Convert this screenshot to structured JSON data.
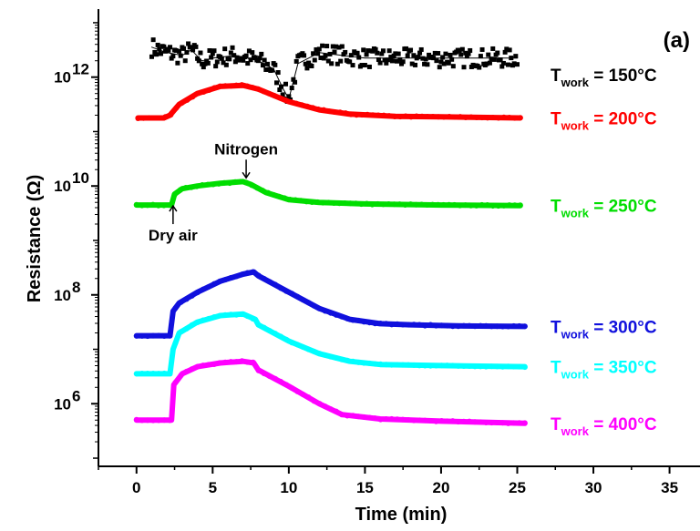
{
  "chart_data": {
    "type": "line",
    "panel_label": "(a)",
    "xlabel": "Time (min)",
    "ylabel": "Resistance (Ω)",
    "xlim": [
      -2.5,
      37
    ],
    "ylim_log10": [
      4.85,
      13.25
    ],
    "y_scale": "log",
    "x_ticks": [
      0,
      5,
      10,
      15,
      20,
      25,
      30,
      35
    ],
    "x_tick_labels": [
      "0",
      "5",
      "10",
      "15",
      "20",
      "25",
      "30",
      "35"
    ],
    "y_ticks": [
      {
        "mantissa": "10",
        "exponent": "6",
        "log10": 6
      },
      {
        "mantissa": "10",
        "exponent": "8",
        "log10": 8
      },
      {
        "mantissa": "10",
        "exponent": "10",
        "log10": 10
      },
      {
        "mantissa": "10",
        "exponent": "12",
        "log10": 12
      }
    ],
    "annotations": [
      {
        "text": "Nitrogen",
        "x": 7.2,
        "log10_y": 10.15,
        "arrow": "down"
      },
      {
        "text": "Dry air",
        "x": 2.4,
        "log10_y": 9.3,
        "arrow": "up"
      }
    ],
    "series": [
      {
        "label_main": "T",
        "label_sub": "work",
        "label_rest": " = 150°C",
        "color": "#000000",
        "marker": "square",
        "x": [
          1.0,
          2.0,
          3.0,
          3.6,
          4.3,
          5.0,
          6.5,
          8.0,
          9.0,
          9.6,
          10.0,
          10.6,
          12.0,
          15.0,
          20.0,
          25.0
        ],
        "log10_y": [
          12.55,
          12.45,
          12.4,
          12.5,
          12.3,
          12.35,
          12.4,
          12.3,
          12.15,
          11.8,
          11.6,
          12.25,
          12.45,
          12.35,
          12.35,
          12.35
        ]
      },
      {
        "label_main": "T",
        "label_sub": "work",
        "label_rest": " = 200°C",
        "color": "#ff0000",
        "marker": "circle",
        "x": [
          0.1,
          1.8,
          2.2,
          2.8,
          4.0,
          5.5,
          7.0,
          8.0,
          10.0,
          12.0,
          14.0,
          17.0,
          20.0,
          25.2
        ],
        "log10_y": [
          11.25,
          11.25,
          11.3,
          11.5,
          11.7,
          11.83,
          11.85,
          11.78,
          11.55,
          11.4,
          11.32,
          11.28,
          11.27,
          11.25
        ]
      },
      {
        "label_main": "T",
        "label_sub": "work",
        "label_rest": " = 250°C",
        "color": "#00dd00",
        "marker": "triangle",
        "x": [
          0.0,
          2.3,
          2.5,
          3.0,
          4.0,
          5.5,
          7.0,
          7.5,
          8.5,
          10.0,
          12.0,
          15.0,
          20.0,
          25.2
        ],
        "log10_y": [
          9.65,
          9.65,
          9.85,
          9.95,
          10.0,
          10.05,
          10.08,
          10.03,
          9.88,
          9.75,
          9.7,
          9.67,
          9.65,
          9.64
        ]
      },
      {
        "label_main": "T",
        "label_sub": "work",
        "label_rest": " = 300°C",
        "color": "#1010dd",
        "marker": "triangle-down",
        "x": [
          0.0,
          2.2,
          2.4,
          2.8,
          4.0,
          5.5,
          7.0,
          7.7,
          8.0,
          10.0,
          12.0,
          14.0,
          16.0,
          18.0,
          21.0,
          25.5
        ],
        "log10_y": [
          7.25,
          7.25,
          7.7,
          7.85,
          8.05,
          8.25,
          8.38,
          8.42,
          8.35,
          8.05,
          7.75,
          7.55,
          7.47,
          7.45,
          7.43,
          7.42
        ]
      },
      {
        "label_main": "T",
        "label_sub": "work",
        "label_rest": " = 350°C",
        "color": "#00ffff",
        "marker": "diamond",
        "x": [
          0.0,
          2.2,
          2.4,
          2.8,
          4.0,
          5.5,
          7.0,
          7.8,
          8.0,
          10.0,
          12.0,
          14.0,
          16.0,
          20.0,
          25.5
        ],
        "log10_y": [
          6.55,
          6.55,
          7.0,
          7.3,
          7.5,
          7.62,
          7.65,
          7.55,
          7.45,
          7.15,
          6.92,
          6.78,
          6.72,
          6.7,
          6.68
        ]
      },
      {
        "label_main": "T",
        "label_sub": "work",
        "label_rest": " = 400°C",
        "color": "#ff00ff",
        "marker": "triangle-left",
        "x": [
          0.0,
          2.3,
          2.45,
          3.0,
          4.0,
          5.5,
          7.0,
          7.7,
          8.0,
          10.0,
          12.0,
          13.5,
          16.0,
          20.0,
          25.5
        ],
        "log10_y": [
          5.7,
          5.7,
          6.35,
          6.55,
          6.68,
          6.75,
          6.78,
          6.75,
          6.62,
          6.32,
          6.0,
          5.8,
          5.72,
          5.68,
          5.64
        ]
      }
    ]
  }
}
